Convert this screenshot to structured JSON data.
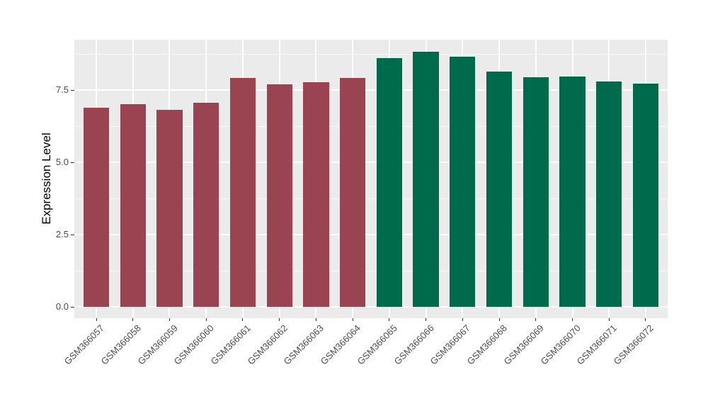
{
  "figure": {
    "background": "#FFFFFF",
    "panel_background": "#EBEBEB",
    "grid_color": "#FFFFFF",
    "tick_mark_color": "#333333",
    "tick_label_color": "#4D4D4D",
    "axis_title_color": "#000000"
  },
  "chart_data": {
    "type": "bar",
    "title": "",
    "xlabel": "",
    "ylabel": "Expression Level",
    "ylim": [
      0,
      9.26
    ],
    "yticks": [
      0,
      2.5,
      5.0,
      7.5
    ],
    "ytick_labels": [
      "0.0",
      "2.5",
      "5.0",
      "7.5"
    ],
    "yticks_minor": [
      1.25,
      3.75,
      6.25,
      8.75
    ],
    "grid": "major and minor horizontal, major vertical at category centers",
    "legend": "none",
    "categories": [
      "GSM366057",
      "GSM366058",
      "GSM366059",
      "GSM366060",
      "GSM366061",
      "GSM366062",
      "GSM366063",
      "GSM366064",
      "GSM366065",
      "GSM366066",
      "GSM366067",
      "GSM366068",
      "GSM366069",
      "GSM366070",
      "GSM366071",
      "GSM366072"
    ],
    "values": [
      6.89,
      7.01,
      6.81,
      7.05,
      7.91,
      7.7,
      7.78,
      7.91,
      8.6,
      8.82,
      8.66,
      8.14,
      7.93,
      7.97,
      7.79,
      7.73
    ],
    "bar_colors": [
      "#9B4451",
      "#9B4451",
      "#9B4451",
      "#9B4451",
      "#9B4451",
      "#9B4451",
      "#9B4451",
      "#9B4451",
      "#006B4C",
      "#006B4C",
      "#006B4C",
      "#006B4C",
      "#006B4C",
      "#006B4C",
      "#006B4C",
      "#006B4C"
    ]
  }
}
